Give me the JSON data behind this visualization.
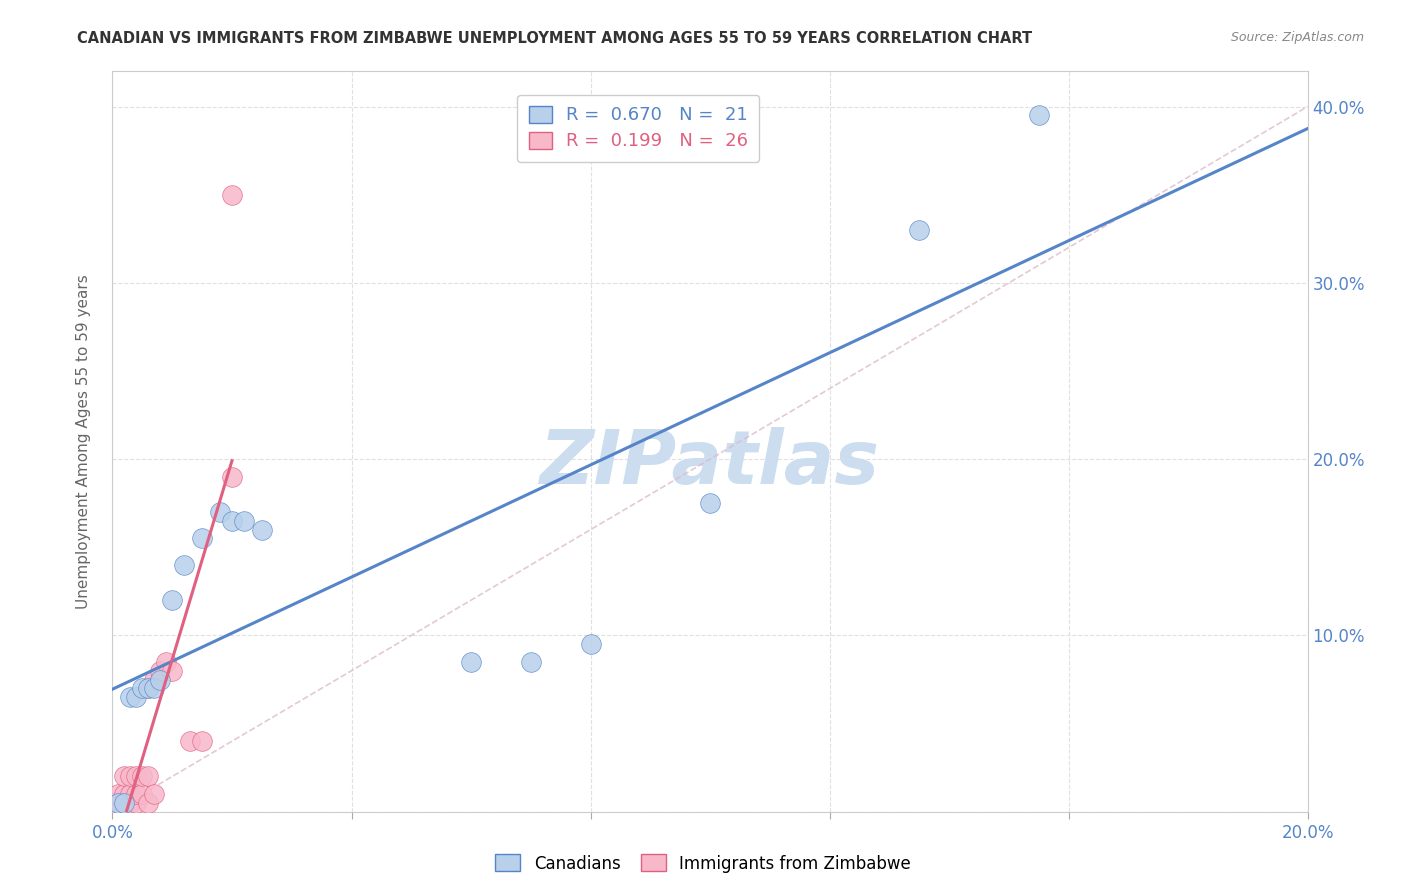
{
  "title": "CANADIAN VS IMMIGRANTS FROM ZIMBABWE UNEMPLOYMENT AMONG AGES 55 TO 59 YEARS CORRELATION CHART",
  "source": "Source: ZipAtlas.com",
  "ylabel": "Unemployment Among Ages 55 to 59 years",
  "xlim": [
    0.0,
    0.2
  ],
  "ylim": [
    0.0,
    0.42
  ],
  "x_ticks": [
    0.0,
    0.04,
    0.08,
    0.12,
    0.16,
    0.2
  ],
  "y_ticks": [
    0.0,
    0.1,
    0.2,
    0.3,
    0.4
  ],
  "canadians_R": 0.67,
  "canadians_N": 21,
  "zimbabwe_R": 0.199,
  "zimbabwe_N": 26,
  "canadians_color": "#b8d0ea",
  "canadians_line_color": "#5585c8",
  "zimbabwe_color": "#f7b8ca",
  "zimbabwe_line_color": "#e06080",
  "diagonal_color": "#cccccc",
  "canadians_x": [
    0.001,
    0.002,
    0.003,
    0.004,
    0.005,
    0.006,
    0.007,
    0.008,
    0.01,
    0.012,
    0.015,
    0.018,
    0.02,
    0.022,
    0.025,
    0.06,
    0.07,
    0.08,
    0.1,
    0.135,
    0.155
  ],
  "canadians_y": [
    0.005,
    0.005,
    0.065,
    0.065,
    0.07,
    0.07,
    0.07,
    0.075,
    0.12,
    0.14,
    0.155,
    0.17,
    0.165,
    0.165,
    0.16,
    0.085,
    0.085,
    0.095,
    0.175,
    0.33,
    0.395
  ],
  "zimbabwe_x": [
    0.0,
    0.001,
    0.001,
    0.002,
    0.002,
    0.002,
    0.003,
    0.003,
    0.003,
    0.004,
    0.004,
    0.004,
    0.005,
    0.005,
    0.006,
    0.006,
    0.006,
    0.007,
    0.007,
    0.008,
    0.009,
    0.01,
    0.013,
    0.015,
    0.02,
    0.02
  ],
  "zimbabwe_y": [
    0.005,
    0.0,
    0.01,
    0.0,
    0.01,
    0.02,
    0.005,
    0.01,
    0.02,
    0.005,
    0.01,
    0.02,
    0.01,
    0.02,
    0.005,
    0.02,
    0.07,
    0.075,
    0.01,
    0.08,
    0.085,
    0.08,
    0.04,
    0.04,
    0.19,
    0.35
  ],
  "watermark": "ZIPatlas",
  "watermark_color": "#ccddf0",
  "background_color": "#ffffff",
  "grid_color": "#dddddd"
}
